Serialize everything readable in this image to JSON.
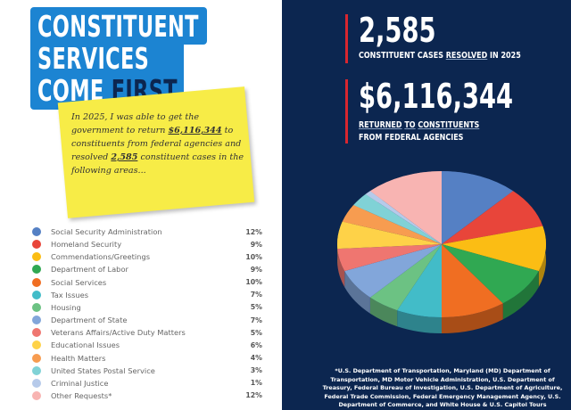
{
  "title": {
    "line1": "CONSTITUENT",
    "line2": "SERVICES",
    "line3a": "COME",
    "line3b": "FIRST"
  },
  "note": {
    "p1": "In 2025, I was able to get the government to return",
    "amount": "$6,116,344",
    "p2": "to constituents from federal agencies and resolved",
    "cases": "2,585",
    "p3": "constituent cases in the following areas..."
  },
  "stats": {
    "cases_value": "2,585",
    "cases_label_a": "CONSTITUENT CASES",
    "cases_label_b": "RESOLVED",
    "cases_label_c": "IN 2025",
    "returned_value": "$6,116,344",
    "returned_label_a": "RETURNED",
    "returned_label_b": "TO",
    "returned_label_c": "CONSTITUENTS",
    "returned_label_d": "FROM FEDERAL AGENCIES"
  },
  "footnote": "*U.S. Department of Transportation, Maryland (MD) Department of Transportation, MD Motor Vehicle Administration, U.S. Department of Treasury, Federal Bureau of Investigation, U.S. Department of Agriculture, Federal Trade Commission, Federal Emergency Management Agency, U.S. Department of Commerce, and White House & U.S. Capitol Tours",
  "chart_data": {
    "type": "pie",
    "style": "3d",
    "legend": "left",
    "categories": [
      "Social Security Administration",
      "Homeland Security",
      "Commendations/Greetings",
      "Department of Labor",
      "Social Services",
      "Tax Issues",
      "Housing",
      "Department of State",
      "Veterans Affairs/Active Duty Matters",
      "Educational Issues",
      "Health Matters",
      "United States Postal Service",
      "Criminal Justice",
      "Other Requests*"
    ],
    "values": [
      12,
      9,
      10,
      9,
      10,
      7,
      5,
      7,
      5,
      6,
      4,
      3,
      1,
      12
    ],
    "labels": [
      "12%",
      "9%",
      "10%",
      "9%",
      "10%",
      "7%",
      "5%",
      "7%",
      "5%",
      "6%",
      "4%",
      "3%",
      "1%",
      "12%"
    ],
    "colors": [
      "#5580c4",
      "#e8453a",
      "#fbbd14",
      "#30a852",
      "#f06e22",
      "#42bcc8",
      "#6cc283",
      "#82a6da",
      "#ef7670",
      "#fed248",
      "#f79c50",
      "#80d2d6",
      "#b6caea",
      "#f8b4b2"
    ]
  }
}
